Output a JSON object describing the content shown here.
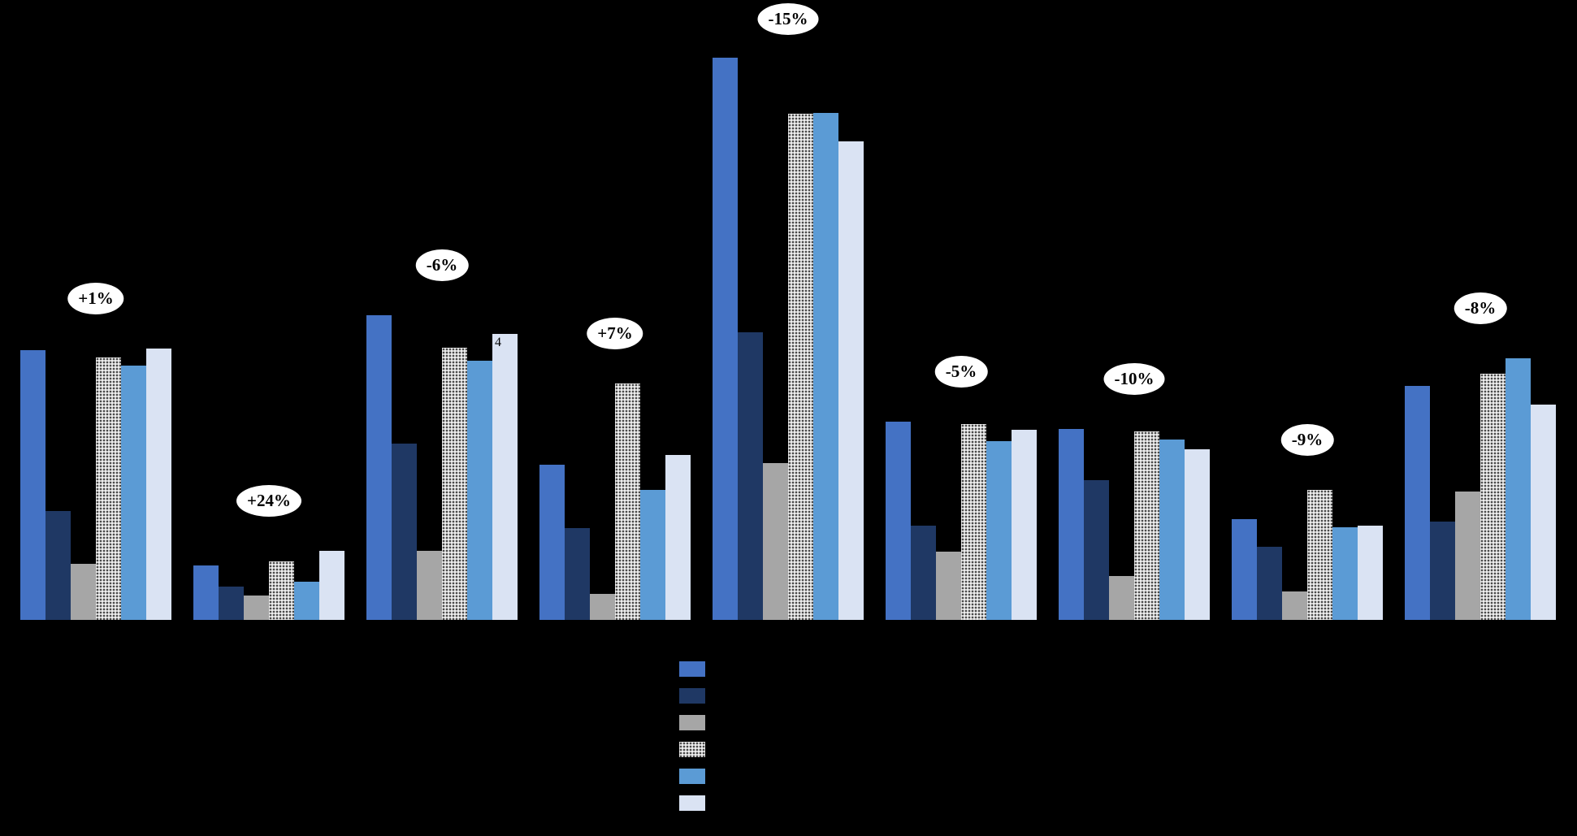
{
  "page": {
    "background_color": "#000000",
    "annotation_bubble_color": "#ffffff",
    "annotation_text_color": "#000000"
  },
  "chart_data": {
    "type": "bar",
    "title": "",
    "xlabel": "",
    "ylabel": "",
    "grid": false,
    "background": "#000000",
    "units": "relative pixel height (no visible axis scale or tick labels)",
    "ylim": [
      0,
      763
    ],
    "categories": [
      "",
      "",
      "",
      "",
      "",
      "",
      "",
      "",
      ""
    ],
    "annotations": [
      "+1%",
      "+24%",
      "-6%",
      "+7%",
      "-15%",
      "-5%",
      "-10%",
      "-9%",
      "-8%"
    ],
    "series": [
      {
        "name": "blue",
        "color": "#4472C4",
        "pattern": false,
        "values": [
          332,
          67,
          375,
          191,
          692,
          244,
          235,
          124,
          288
        ]
      },
      {
        "name": "dark-navy",
        "color": "#1F3864",
        "pattern": false,
        "values": [
          134,
          41,
          217,
          113,
          354,
          116,
          172,
          90,
          121
        ]
      },
      {
        "name": "gray",
        "color": "#A6A6A6",
        "pattern": false,
        "values": [
          69,
          30,
          85,
          32,
          193,
          84,
          54,
          35,
          158
        ]
      },
      {
        "name": "dotted-pattern",
        "color": "#EFEFEF",
        "pattern": true,
        "values": [
          323,
          72,
          335,
          291,
          623,
          241,
          232,
          160,
          303
        ]
      },
      {
        "name": "light-blue",
        "color": "#5B9BD5",
        "pattern": false,
        "values": [
          313,
          47,
          319,
          160,
          624,
          220,
          222,
          114,
          322
        ]
      },
      {
        "name": "pale-blue",
        "color": "#DAE3F3",
        "pattern": false,
        "values": [
          334,
          85,
          352,
          203,
          589,
          234,
          210,
          116,
          265
        ]
      }
    ],
    "legend": {
      "position": "bottom-center",
      "orientation": "vertical",
      "entries": [
        "blue",
        "dark-navy",
        "gray",
        "dotted-pattern",
        "light-blue",
        "pale-blue"
      ],
      "labels_visible": false
    },
    "visible_data_label": {
      "text": "4",
      "group_index": 2,
      "series_index": 5
    }
  }
}
